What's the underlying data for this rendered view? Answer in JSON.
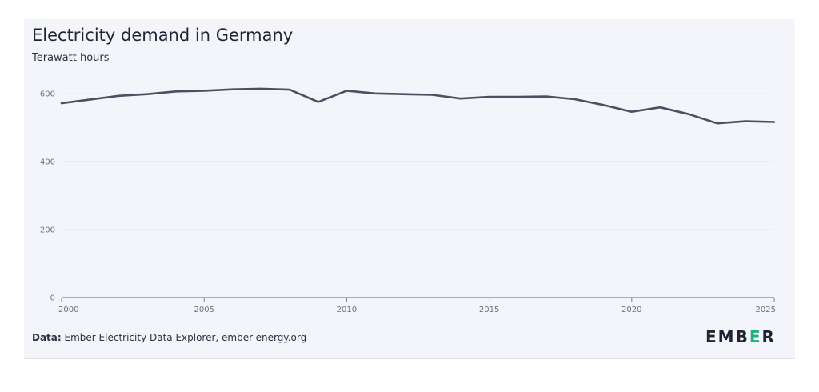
{
  "chart_data": {
    "type": "line",
    "title": "Electricity demand in Germany",
    "subtitle": "Terawatt hours",
    "x": [
      2000,
      2001,
      2002,
      2003,
      2004,
      2005,
      2006,
      2007,
      2008,
      2009,
      2010,
      2011,
      2012,
      2013,
      2014,
      2015,
      2016,
      2017,
      2018,
      2019,
      2020,
      2021,
      2022,
      2023,
      2024,
      2025
    ],
    "series": [
      {
        "values": [
          572,
          583,
          594,
          599,
          607,
          609,
          613,
          615,
          612,
          576,
          609,
          601,
          599,
          597,
          586,
          591,
          591,
          592,
          584,
          567,
          547,
          560,
          540,
          513,
          519,
          517
        ],
        "color": "#4a5060"
      }
    ],
    "x_ticks": [
      "2000",
      "2005",
      "2010",
      "2015",
      "2020",
      "2025"
    ],
    "y_ticks": [
      "0",
      "200",
      "400",
      "600"
    ],
    "xlim": [
      2000,
      2025
    ],
    "ylim": [
      0,
      650
    ],
    "grid": true,
    "legend": "none"
  },
  "footer": {
    "source_label": "Data:",
    "source_text": "Ember Electricity Data Explorer, ember-energy.org",
    "logo_left": "EMB",
    "logo_accent": "E",
    "logo_right": "R",
    "logo_accent_color": "#1db07c"
  }
}
